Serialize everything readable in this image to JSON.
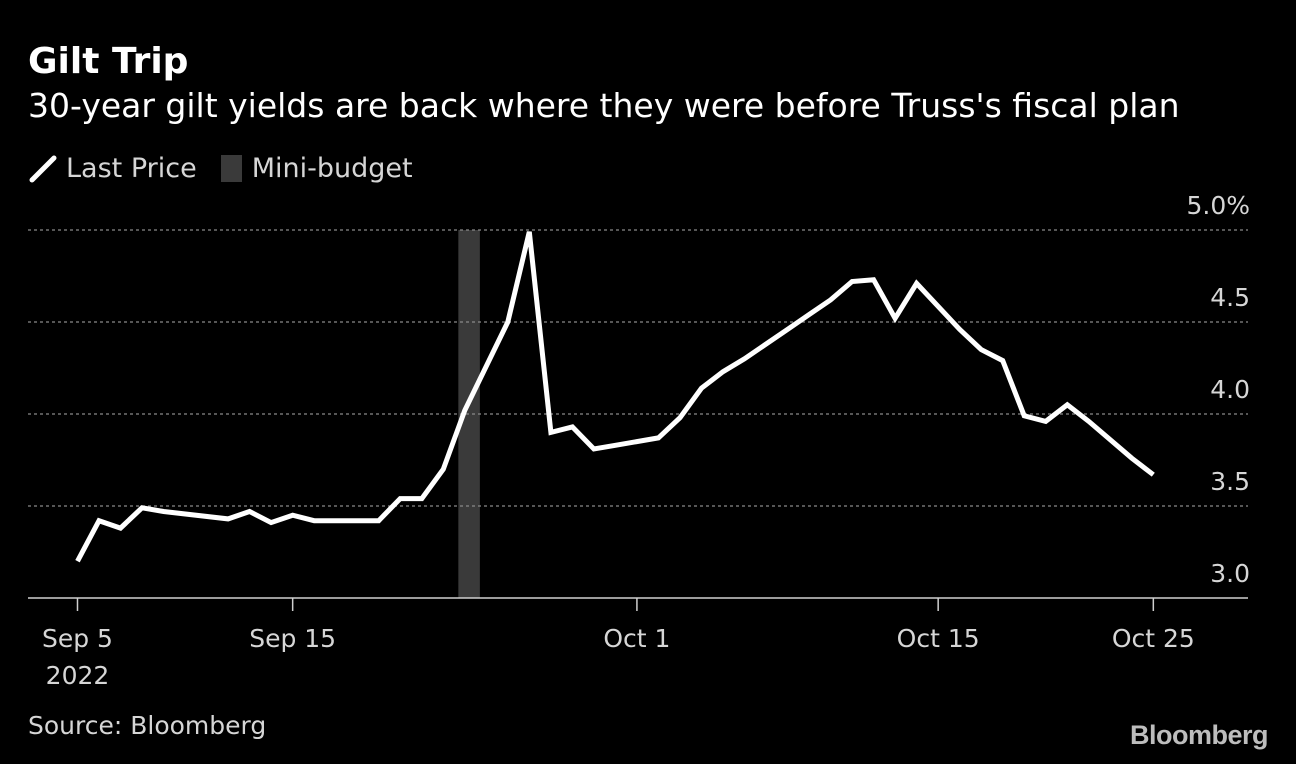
{
  "header": {
    "title": "Gilt Trip",
    "subtitle": "30-year gilt yields are back where they were before Truss's fiscal plan"
  },
  "legend": {
    "line_label": "Last Price",
    "band_label": "Mini-budget"
  },
  "footer": {
    "source": "Source: Bloomberg",
    "brand": "Bloomberg"
  },
  "colors": {
    "background": "#000000",
    "line": "#ffffff",
    "band": "#3a3a3a",
    "grid": "#8a8a8a",
    "axis_text": "#d6d6d6"
  },
  "chart_data": {
    "type": "line",
    "title": "Gilt Trip",
    "subtitle": "30-year gilt yields are back where they were before Truss's fiscal plan",
    "xlabel": "",
    "ylabel": "",
    "ylim": [
      3.0,
      5.0
    ],
    "y_ticks": [
      {
        "value": 5.0,
        "label": "5.0%"
      },
      {
        "value": 4.5,
        "label": "4.5"
      },
      {
        "value": 4.0,
        "label": "4.0"
      },
      {
        "value": 3.5,
        "label": "3.5"
      },
      {
        "value": 3.0,
        "label": "3.0"
      }
    ],
    "x_ticks": [
      {
        "day": 5,
        "label": "Sep 5",
        "sublabel": "2022"
      },
      {
        "day": 15,
        "label": "Sep 15",
        "sublabel": ""
      },
      {
        "day": 31,
        "label": "Oct 1",
        "sublabel": ""
      },
      {
        "day": 45,
        "label": "Oct 15",
        "sublabel": ""
      },
      {
        "day": 55,
        "label": "Oct 25",
        "sublabel": ""
      }
    ],
    "x_domain": [
      2.7,
      59.4
    ],
    "band": {
      "name": "Mini-budget",
      "start_day": 22.7,
      "end_day": 23.7
    },
    "series": [
      {
        "name": "Last Price",
        "x": [
          5,
          6,
          7,
          8,
          9,
          12,
          13,
          14,
          15,
          16,
          19,
          20,
          21,
          22,
          23,
          25,
          26,
          27,
          28,
          29,
          30,
          32,
          33,
          34,
          35,
          36,
          38,
          39,
          40,
          41,
          42,
          43,
          44,
          46,
          47,
          48,
          49,
          50,
          51,
          52,
          54,
          55
        ],
        "y": [
          3.2,
          3.42,
          3.38,
          3.49,
          3.47,
          3.43,
          3.47,
          3.41,
          3.45,
          3.42,
          3.42,
          3.54,
          3.54,
          3.7,
          4.02,
          4.5,
          4.99,
          3.9,
          3.93,
          3.81,
          3.83,
          3.87,
          3.98,
          4.14,
          4.23,
          4.3,
          4.46,
          4.54,
          4.62,
          4.72,
          4.73,
          4.52,
          4.71,
          4.46,
          4.35,
          4.29,
          3.99,
          3.96,
          4.05,
          3.96,
          3.76,
          3.67
        ]
      }
    ]
  }
}
